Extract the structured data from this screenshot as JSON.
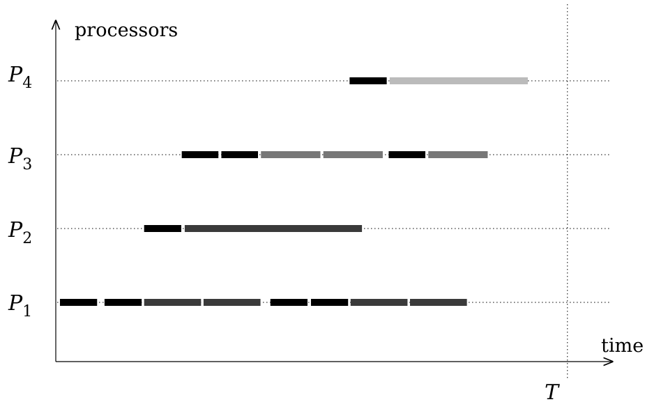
{
  "axes": {
    "y_label": "processors",
    "x_label": "time",
    "deadline_label": "T"
  },
  "processors": [
    {
      "name": "P",
      "sub": "1"
    },
    {
      "name": "P",
      "sub": "2"
    },
    {
      "name": "P",
      "sub": "3"
    },
    {
      "name": "P",
      "sub": "4"
    }
  ],
  "colors": {
    "black_task": "#000000",
    "dark_gray_task": "#3a3a3a",
    "mid_gray_task": "#777777",
    "light_gray_task": "#bbbbbb"
  },
  "tasks": [
    {
      "processor": 1,
      "start": 0.0,
      "end": 7.5,
      "shade": "black_task"
    },
    {
      "processor": 1,
      "start": 9.0,
      "end": 16.5,
      "shade": "black_task"
    },
    {
      "processor": 1,
      "start": 17.0,
      "end": 28.5,
      "shade": "dark_gray_task"
    },
    {
      "processor": 1,
      "start": 29.0,
      "end": 40.5,
      "shade": "dark_gray_task"
    },
    {
      "processor": 1,
      "start": 42.5,
      "end": 50.0,
      "shade": "black_task"
    },
    {
      "processor": 1,
      "start": 50.7,
      "end": 58.2,
      "shade": "black_task"
    },
    {
      "processor": 1,
      "start": 58.7,
      "end": 70.2,
      "shade": "dark_gray_task"
    },
    {
      "processor": 1,
      "start": 70.7,
      "end": 82.2,
      "shade": "dark_gray_task"
    },
    {
      "processor": 2,
      "start": 17.0,
      "end": 24.5,
      "shade": "black_task"
    },
    {
      "processor": 2,
      "start": 25.2,
      "end": 61.0,
      "shade": "dark_gray_task"
    },
    {
      "processor": 3,
      "start": 24.6,
      "end": 32.0,
      "shade": "black_task"
    },
    {
      "processor": 3,
      "start": 32.6,
      "end": 40.0,
      "shade": "black_task"
    },
    {
      "processor": 3,
      "start": 40.6,
      "end": 52.6,
      "shade": "mid_gray_task"
    },
    {
      "processor": 3,
      "start": 53.2,
      "end": 65.2,
      "shade": "mid_gray_task"
    },
    {
      "processor": 3,
      "start": 66.4,
      "end": 73.8,
      "shade": "black_task"
    },
    {
      "processor": 3,
      "start": 74.4,
      "end": 86.4,
      "shade": "mid_gray_task"
    },
    {
      "processor": 4,
      "start": 58.5,
      "end": 66.0,
      "shade": "black_task"
    },
    {
      "processor": 4,
      "start": 66.6,
      "end": 94.5,
      "shade": "light_gray_task"
    }
  ],
  "deadline": 102.5,
  "time_max": 115
}
